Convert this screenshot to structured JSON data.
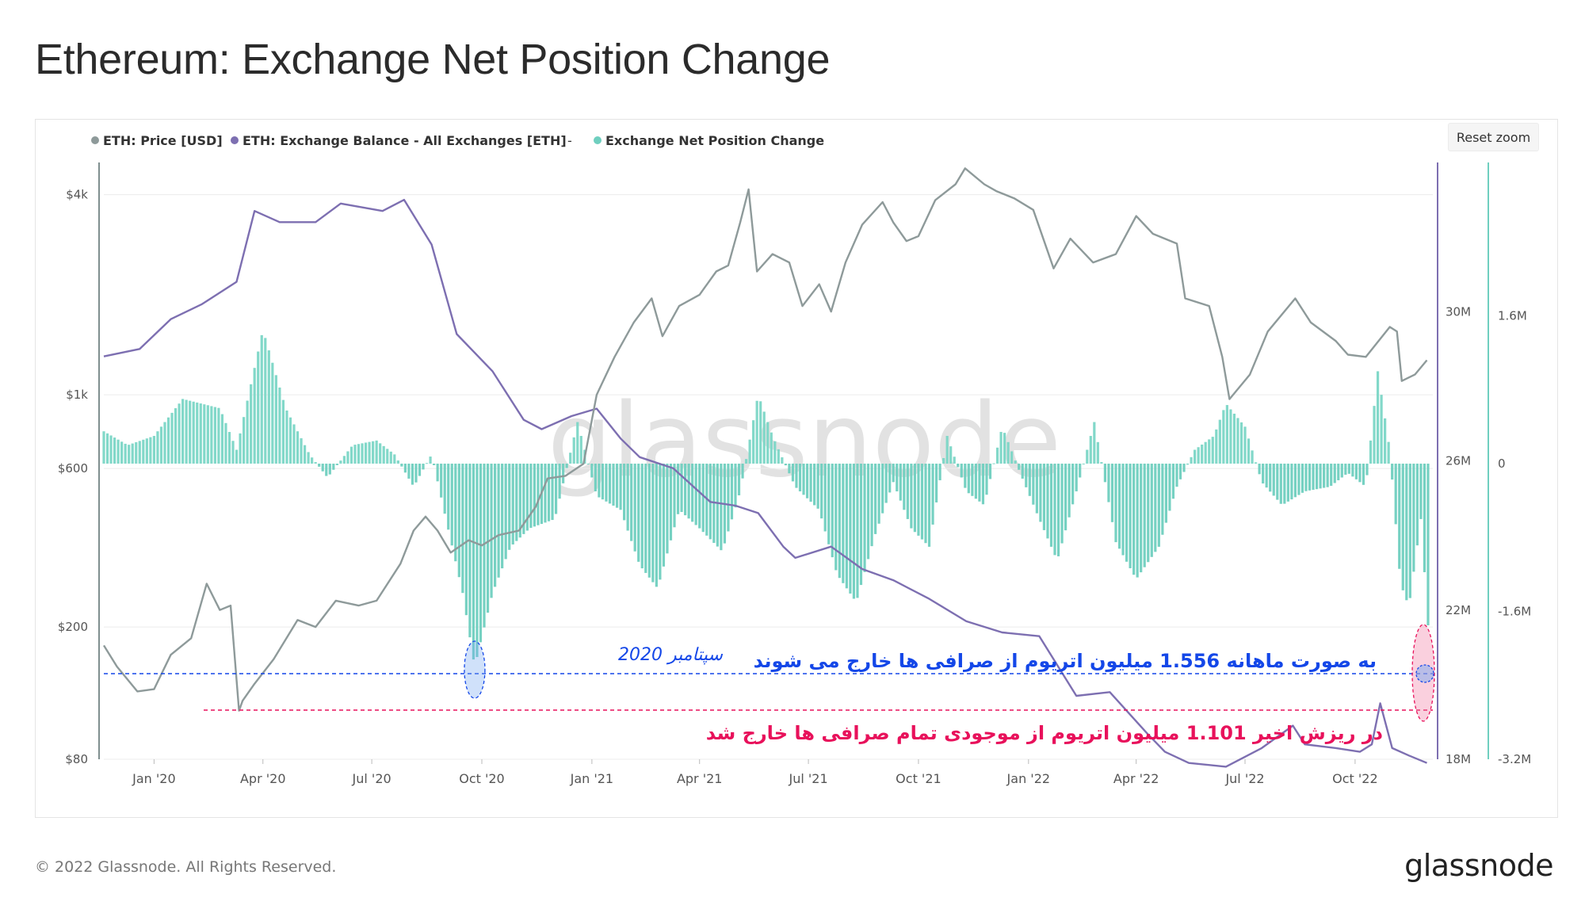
{
  "header": {
    "title": "Ethereum: Exchange Net Position Change"
  },
  "toolbar": {
    "reset_zoom_label": "Reset zoom"
  },
  "footer": {
    "copyright": "© 2022 Glassnode. All Rights Reserved.",
    "brand": "glassnode"
  },
  "watermark": "glassnode",
  "colors": {
    "price": "#8e9a9a",
    "balance": "#7d6fb1",
    "positive_change": "#7bd6c6",
    "negative_change": "#6fcfbf",
    "annotation_blue": "#1447e8",
    "annotation_red": "#e8115b",
    "grid": "#ececec",
    "axis_text": "#555555"
  },
  "chart_data": {
    "type": "combo",
    "title": "Ethereum: Exchange Net Position Change",
    "legend": [
      {
        "label": "ETH: Price [USD]",
        "color": "#8e9a9a"
      },
      {
        "label": "ETH: Exchange Balance - All Exchanges [ETH]",
        "color": "#7d6fb1"
      },
      {
        "label": "-",
        "color": ""
      },
      {
        "label": "Exchange Net Position Change",
        "color": "#6fcfbf"
      }
    ],
    "x_axis": {
      "start": "2019-11-20",
      "end": "2022-12-05",
      "ticks": [
        {
          "label": "Jan '20",
          "date": "2020-01-01"
        },
        {
          "label": "Apr '20",
          "date": "2020-04-01"
        },
        {
          "label": "Jul '20",
          "date": "2020-07-01"
        },
        {
          "label": "Oct '20",
          "date": "2020-10-01"
        },
        {
          "label": "Jan '21",
          "date": "2021-01-01"
        },
        {
          "label": "Apr '21",
          "date": "2021-04-01"
        },
        {
          "label": "Jul '21",
          "date": "2021-07-01"
        },
        {
          "label": "Oct '21",
          "date": "2021-10-01"
        },
        {
          "label": "Jan '22",
          "date": "2022-01-01"
        },
        {
          "label": "Apr '22",
          "date": "2022-04-01"
        },
        {
          "label": "Jul '22",
          "date": "2022-07-01"
        },
        {
          "label": "Oct '22",
          "date": "2022-10-01"
        }
      ]
    },
    "price_axis": {
      "scale": "log",
      "range": [
        80,
        5000
      ],
      "ticks": [
        {
          "label": "$4k",
          "value": 4000
        },
        {
          "label": "$1k",
          "value": 1000
        },
        {
          "label": "$600",
          "value": 600
        },
        {
          "label": "$200",
          "value": 200
        },
        {
          "label": "$80",
          "value": 80
        }
      ]
    },
    "balance_axis": {
      "scale": "linear",
      "range": [
        18000000,
        34000000
      ],
      "ticks": [
        {
          "label": "30M",
          "value": 30000000
        },
        {
          "label": "26M",
          "value": 26000000
        },
        {
          "label": "22M",
          "value": 22000000
        },
        {
          "label": "18M",
          "value": 18000000
        }
      ]
    },
    "change_axis": {
      "scale": "linear",
      "range": [
        -3200000,
        3200000
      ],
      "ticks": [
        {
          "label": "1.6M",
          "value": 1600000
        },
        {
          "label": "0",
          "value": 0
        },
        {
          "label": "-1.6M",
          "value": -1600000
        },
        {
          "label": "-3.2M",
          "value": -3200000
        }
      ]
    },
    "series": [
      {
        "name": "ETH: Price [USD]",
        "axis": "price",
        "points": [
          [
            "2019-11-20",
            176
          ],
          [
            "2019-12-01",
            152
          ],
          [
            "2019-12-18",
            128
          ],
          [
            "2020-01-01",
            130
          ],
          [
            "2020-01-15",
            165
          ],
          [
            "2020-02-01",
            185
          ],
          [
            "2020-02-14",
            270
          ],
          [
            "2020-02-25",
            225
          ],
          [
            "2020-03-05",
            232
          ],
          [
            "2020-03-12",
            112
          ],
          [
            "2020-03-15",
            120
          ],
          [
            "2020-03-25",
            135
          ],
          [
            "2020-04-10",
            160
          ],
          [
            "2020-04-30",
            210
          ],
          [
            "2020-05-15",
            200
          ],
          [
            "2020-06-01",
            240
          ],
          [
            "2020-06-20",
            232
          ],
          [
            "2020-07-05",
            240
          ],
          [
            "2020-07-25",
            310
          ],
          [
            "2020-08-05",
            390
          ],
          [
            "2020-08-15",
            430
          ],
          [
            "2020-08-25",
            390
          ],
          [
            "2020-09-05",
            335
          ],
          [
            "2020-09-20",
            365
          ],
          [
            "2020-10-01",
            352
          ],
          [
            "2020-10-15",
            378
          ],
          [
            "2020-11-01",
            390
          ],
          [
            "2020-11-15",
            460
          ],
          [
            "2020-11-25",
            560
          ],
          [
            "2020-12-10",
            570
          ],
          [
            "2020-12-25",
            620
          ],
          [
            "2021-01-05",
            1000
          ],
          [
            "2021-01-20",
            1300
          ],
          [
            "2021-02-05",
            1650
          ],
          [
            "2021-02-20",
            1950
          ],
          [
            "2021-03-01",
            1500
          ],
          [
            "2021-03-15",
            1850
          ],
          [
            "2021-04-01",
            2000
          ],
          [
            "2021-04-15",
            2350
          ],
          [
            "2021-04-25",
            2450
          ],
          [
            "2021-05-05",
            3300
          ],
          [
            "2021-05-12",
            4150
          ],
          [
            "2021-05-19",
            2350
          ],
          [
            "2021-06-01",
            2650
          ],
          [
            "2021-06-15",
            2500
          ],
          [
            "2021-06-26",
            1850
          ],
          [
            "2021-07-10",
            2150
          ],
          [
            "2021-07-20",
            1780
          ],
          [
            "2021-08-01",
            2500
          ],
          [
            "2021-08-15",
            3250
          ],
          [
            "2021-09-01",
            3800
          ],
          [
            "2021-09-10",
            3300
          ],
          [
            "2021-09-21",
            2900
          ],
          [
            "2021-10-01",
            3000
          ],
          [
            "2021-10-15",
            3850
          ],
          [
            "2021-11-01",
            4300
          ],
          [
            "2021-11-09",
            4800
          ],
          [
            "2021-11-25",
            4300
          ],
          [
            "2021-12-05",
            4100
          ],
          [
            "2021-12-20",
            3900
          ],
          [
            "2022-01-05",
            3600
          ],
          [
            "2022-01-22",
            2400
          ],
          [
            "2022-02-05",
            2950
          ],
          [
            "2022-02-24",
            2500
          ],
          [
            "2022-03-15",
            2650
          ],
          [
            "2022-04-01",
            3450
          ],
          [
            "2022-04-15",
            3050
          ],
          [
            "2022-05-05",
            2850
          ],
          [
            "2022-05-12",
            1950
          ],
          [
            "2022-06-01",
            1850
          ],
          [
            "2022-06-12",
            1300
          ],
          [
            "2022-06-18",
            970
          ],
          [
            "2022-07-05",
            1150
          ],
          [
            "2022-07-20",
            1550
          ],
          [
            "2022-08-12",
            1950
          ],
          [
            "2022-08-25",
            1650
          ],
          [
            "2022-09-15",
            1450
          ],
          [
            "2022-09-25",
            1320
          ],
          [
            "2022-10-10",
            1300
          ],
          [
            "2022-10-30",
            1600
          ],
          [
            "2022-11-05",
            1550
          ],
          [
            "2022-11-09",
            1100
          ],
          [
            "2022-11-20",
            1150
          ],
          [
            "2022-11-30",
            1270
          ]
        ]
      },
      {
        "name": "ETH: Exchange Balance - All Exchanges [ETH]",
        "axis": "balance",
        "points": [
          [
            "2019-11-20",
            28800000
          ],
          [
            "2019-12-20",
            29000000
          ],
          [
            "2020-01-15",
            29800000
          ],
          [
            "2020-02-10",
            30200000
          ],
          [
            "2020-03-10",
            30800000
          ],
          [
            "2020-03-25",
            32700000
          ],
          [
            "2020-04-15",
            32400000
          ],
          [
            "2020-05-15",
            32400000
          ],
          [
            "2020-06-05",
            32900000
          ],
          [
            "2020-07-10",
            32700000
          ],
          [
            "2020-07-28",
            33000000
          ],
          [
            "2020-08-20",
            31800000
          ],
          [
            "2020-09-10",
            29400000
          ],
          [
            "2020-10-10",
            28400000
          ],
          [
            "2020-11-05",
            27100000
          ],
          [
            "2020-11-20",
            26850000
          ],
          [
            "2020-12-15",
            27200000
          ],
          [
            "2021-01-05",
            27400000
          ],
          [
            "2021-01-25",
            26600000
          ],
          [
            "2021-02-10",
            26100000
          ],
          [
            "2021-03-10",
            25800000
          ],
          [
            "2021-04-10",
            24900000
          ],
          [
            "2021-05-01",
            24800000
          ],
          [
            "2021-05-20",
            24600000
          ],
          [
            "2021-06-10",
            23700000
          ],
          [
            "2021-06-20",
            23400000
          ],
          [
            "2021-07-20",
            23700000
          ],
          [
            "2021-08-15",
            23100000
          ],
          [
            "2021-09-10",
            22800000
          ],
          [
            "2021-10-10",
            22300000
          ],
          [
            "2021-11-10",
            21700000
          ],
          [
            "2021-12-10",
            21400000
          ],
          [
            "2022-01-10",
            21300000
          ],
          [
            "2022-02-10",
            19700000
          ],
          [
            "2022-03-10",
            19800000
          ],
          [
            "2022-04-10",
            18700000
          ],
          [
            "2022-04-25",
            18200000
          ],
          [
            "2022-05-15",
            17900000
          ],
          [
            "2022-06-15",
            17800000
          ],
          [
            "2022-07-15",
            18300000
          ],
          [
            "2022-08-10",
            18900000
          ],
          [
            "2022-08-20",
            18400000
          ],
          [
            "2022-09-15",
            18300000
          ],
          [
            "2022-10-05",
            18200000
          ],
          [
            "2022-10-15",
            18400000
          ],
          [
            "2022-10-22",
            19500000
          ],
          [
            "2022-11-01",
            18300000
          ],
          [
            "2022-11-15",
            18100000
          ],
          [
            "2022-11-30",
            17900000
          ]
        ]
      },
      {
        "name": "Exchange Net Position Change",
        "axis": "change",
        "render": "bars",
        "points": [
          [
            "2019-11-20",
            350000
          ],
          [
            "2019-12-10",
            200000
          ],
          [
            "2020-01-01",
            300000
          ],
          [
            "2020-01-25",
            700000
          ],
          [
            "2020-02-25",
            600000
          ],
          [
            "2020-03-10",
            150000
          ],
          [
            "2020-04-01",
            1450000
          ],
          [
            "2020-04-20",
            600000
          ],
          [
            "2020-05-10",
            100000
          ],
          [
            "2020-05-25",
            -150000
          ],
          [
            "2020-06-15",
            200000
          ],
          [
            "2020-07-05",
            250000
          ],
          [
            "2020-07-20",
            100000
          ],
          [
            "2020-08-05",
            -250000
          ],
          [
            "2020-08-20",
            100000
          ],
          [
            "2020-09-01",
            -600000
          ],
          [
            "2020-09-15",
            -1400000
          ],
          [
            "2020-09-25",
            -2200000
          ],
          [
            "2020-10-10",
            -1400000
          ],
          [
            "2020-10-25",
            -900000
          ],
          [
            "2020-11-10",
            -700000
          ],
          [
            "2020-12-01",
            -600000
          ],
          [
            "2020-12-20",
            450000
          ],
          [
            "2021-01-05",
            -350000
          ],
          [
            "2021-01-25",
            -500000
          ],
          [
            "2021-02-10",
            -1100000
          ],
          [
            "2021-02-25",
            -1350000
          ],
          [
            "2021-03-15",
            -500000
          ],
          [
            "2021-04-01",
            -700000
          ],
          [
            "2021-04-20",
            -950000
          ],
          [
            "2021-05-05",
            -300000
          ],
          [
            "2021-05-20",
            750000
          ],
          [
            "2021-06-01",
            300000
          ],
          [
            "2021-06-20",
            -250000
          ],
          [
            "2021-07-10",
            -500000
          ],
          [
            "2021-07-25",
            -1200000
          ],
          [
            "2021-08-10",
            -1500000
          ],
          [
            "2021-08-25",
            -800000
          ],
          [
            "2021-09-10",
            -200000
          ],
          [
            "2021-09-25",
            -700000
          ],
          [
            "2021-10-10",
            -900000
          ],
          [
            "2021-10-25",
            300000
          ],
          [
            "2021-11-10",
            -300000
          ],
          [
            "2021-11-25",
            -450000
          ],
          [
            "2021-12-10",
            400000
          ],
          [
            "2021-12-25",
            -100000
          ],
          [
            "2022-01-10",
            -600000
          ],
          [
            "2022-01-25",
            -1050000
          ],
          [
            "2022-02-10",
            -300000
          ],
          [
            "2022-02-25",
            450000
          ],
          [
            "2022-03-15",
            -850000
          ],
          [
            "2022-04-01",
            -1250000
          ],
          [
            "2022-04-20",
            -900000
          ],
          [
            "2022-05-05",
            -250000
          ],
          [
            "2022-05-20",
            150000
          ],
          [
            "2022-06-05",
            300000
          ],
          [
            "2022-06-15",
            650000
          ],
          [
            "2022-07-01",
            400000
          ],
          [
            "2022-07-15",
            -200000
          ],
          [
            "2022-08-01",
            -450000
          ],
          [
            "2022-08-20",
            -300000
          ],
          [
            "2022-09-10",
            -250000
          ],
          [
            "2022-09-25",
            -100000
          ],
          [
            "2022-10-10",
            -250000
          ],
          [
            "2022-10-20",
            1000000
          ],
          [
            "2022-10-30",
            150000
          ],
          [
            "2022-11-08",
            -1300000
          ],
          [
            "2022-11-15",
            -1550000
          ],
          [
            "2022-11-25",
            -600000
          ],
          [
            "2022-12-01",
            -1750000
          ]
        ]
      }
    ],
    "annotations": [
      {
        "id": "sep2020",
        "text": "سپتامبر 2020",
        "date": "2020-09-25",
        "color": "#1447e8"
      },
      {
        "id": "monthly",
        "text": "به صورت ماهانه 1.556 میلیون اتریوم از صرافی ها خارج می شوند",
        "color": "#1447e8"
      },
      {
        "id": "recent",
        "text": "در ریزش اخیر 1.101 میلیون اتریوم از موجودی تمام صرافی ها خارج شد",
        "color": "#e8115b"
      }
    ]
  }
}
